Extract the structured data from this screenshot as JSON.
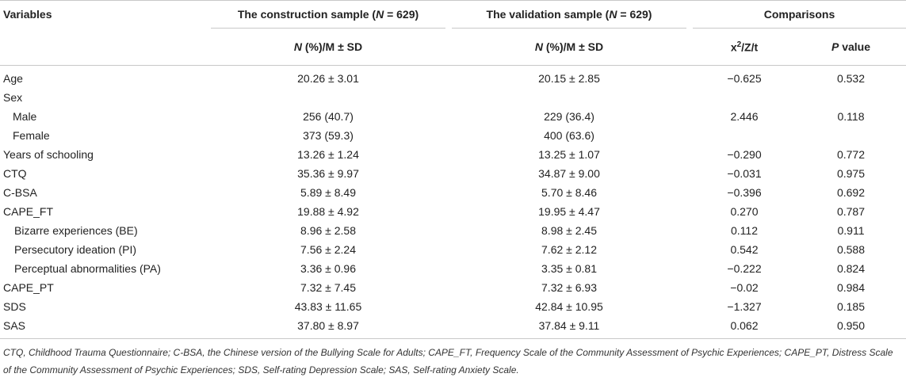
{
  "header": {
    "variables": "Variables",
    "construction": {
      "pre": "The construction sample (",
      "n": "N",
      "post": " = 629)"
    },
    "validation": {
      "pre": "The validation sample (",
      "n": "N",
      "post": " = 629)"
    },
    "comparisons": "Comparisons",
    "stat_col": {
      "n": "N",
      "rest": " (%)/M ± SD"
    },
    "test_col": {
      "pre": "x",
      "sup": "2",
      "post": "/Z/t"
    },
    "p_col": {
      "p": "P",
      "rest": " value"
    }
  },
  "rows": [
    {
      "label": "Age",
      "indent": 0,
      "construction": "20.26 ± 3.01",
      "validation": "20.15 ± 2.85",
      "test": "−0.625",
      "p": "0.532"
    },
    {
      "label": "Sex",
      "indent": 0,
      "construction": "",
      "validation": "",
      "test": "",
      "p": ""
    },
    {
      "label": "Male",
      "indent": 1,
      "construction": "256 (40.7)",
      "validation": "229 (36.4)",
      "test": "2.446",
      "p": "0.118"
    },
    {
      "label": "Female",
      "indent": 1,
      "construction": "373 (59.3)",
      "validation": "400 (63.6)",
      "test": "",
      "p": ""
    },
    {
      "label": "Years of schooling",
      "indent": 0,
      "construction": "13.26 ± 1.24",
      "validation": "13.25 ± 1.07",
      "test": "−0.290",
      "p": "0.772"
    },
    {
      "label": "CTQ",
      "indent": 0,
      "construction": "35.36 ± 9.97",
      "validation": "34.87 ± 9.00",
      "test": "−0.031",
      "p": "0.975"
    },
    {
      "label": "C-BSA",
      "indent": 0,
      "construction": "5.89 ± 8.49",
      "validation": "5.70 ± 8.46",
      "test": "−0.396",
      "p": "0.692"
    },
    {
      "label": "CAPE_FT",
      "indent": 0,
      "construction": "19.88 ± 4.92",
      "validation": "19.95 ± 4.47",
      "test": "0.270",
      "p": "0.787"
    },
    {
      "label": "Bizarre experiences (BE)",
      "indent": 2,
      "construction": "8.96 ± 2.58",
      "validation": "8.98 ± 2.45",
      "test": "0.112",
      "p": "0.911"
    },
    {
      "label": "Persecutory ideation (PI)",
      "indent": 2,
      "construction": "7.56 ± 2.24",
      "validation": "7.62 ± 2.12",
      "test": "0.542",
      "p": "0.588"
    },
    {
      "label": "Perceptual abnormalities (PA)",
      "indent": 2,
      "construction": "3.36 ± 0.96",
      "validation": "3.35 ± 0.81",
      "test": "−0.222",
      "p": "0.824"
    },
    {
      "label": "CAPE_PT",
      "indent": 0,
      "construction": "7.32 ± 7.45",
      "validation": "7.32 ± 6.93",
      "test": "−0.02",
      "p": "0.984"
    },
    {
      "label": "SDS",
      "indent": 0,
      "construction": "43.83 ± 11.65",
      "validation": "42.84 ± 10.95",
      "test": "−1.327",
      "p": "0.185"
    },
    {
      "label": "SAS",
      "indent": 0,
      "construction": "37.80 ± 8.97",
      "validation": "37.84 ± 9.11",
      "test": "0.062",
      "p": "0.950"
    }
  ],
  "footnote": "CTQ, Childhood Trauma Questionnaire; C-BSA, the Chinese version of the Bullying Scale for Adults; CAPE_FT, Frequency Scale of the Community Assessment of Psychic Experiences; CAPE_PT, Distress Scale of the Community Assessment of Psychic Experiences; SDS, Self-rating Depression Scale; SAS, Self-rating Anxiety Scale."
}
